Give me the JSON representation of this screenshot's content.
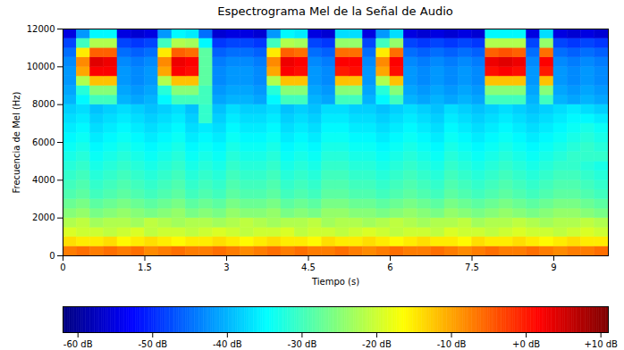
{
  "chart_data": {
    "type": "heatmap",
    "title": "Espectrograma Mel de la Señal de Audio",
    "x_label": "Tiempo (s)",
    "y_label": "Frecuencia de Mel (Hz)",
    "xlim": [
      0,
      10
    ],
    "xticks": [
      0,
      1.5,
      3,
      4.5,
      6,
      7.5,
      9
    ],
    "ylim": [
      0,
      12000
    ],
    "yticks": [
      0,
      2000,
      4000,
      6000,
      8000,
      10000,
      12000
    ],
    "color": "jet",
    "x_bins": [
      0,
      0.25,
      0.5,
      0.75,
      1,
      1.25,
      1.5,
      1.75,
      2,
      2.25,
      2.5,
      2.75,
      3,
      3.25,
      3.5,
      3.75,
      4,
      4.25,
      4.5,
      4.75,
      5,
      5.25,
      5.5,
      5.75,
      6,
      6.25,
      6.5,
      6.75,
      7,
      7.25,
      7.5,
      7.75,
      8,
      8.25,
      8.5,
      8.75,
      9,
      9.25,
      9.5,
      9.75,
      10
    ],
    "y_bins": [
      0,
      500,
      1000,
      1500,
      2000,
      2500,
      3000,
      3500,
      4000,
      4500,
      5000,
      5500,
      6000,
      6500,
      7000,
      7500,
      8000,
      8500,
      9000,
      9500,
      10000,
      10500,
      11000,
      11500,
      12000
    ],
    "values": [
      [
        -7,
        -6,
        -7,
        -6,
        -7,
        -6,
        -8,
        -7,
        -6,
        -7,
        -7,
        -6,
        -7,
        -8,
        -7,
        -6,
        -7,
        -6,
        -7,
        -7,
        -6,
        -7,
        -8,
        -7,
        -6,
        -7,
        -7,
        -6,
        -7,
        -8,
        -7,
        -6,
        -7,
        -7,
        -6,
        -7,
        -8,
        -7,
        -7,
        -6
      ],
      [
        -14,
        -15,
        -15,
        -14,
        -16,
        -15,
        -14,
        -15,
        -16,
        -15,
        -15,
        -14,
        -15,
        -16,
        -15,
        -14,
        -15,
        -15,
        -16,
        -14,
        -15,
        -15,
        -14,
        -15,
        -16,
        -15,
        -14,
        -15,
        -15,
        -16,
        -14,
        -15,
        -15,
        -14,
        -15,
        -16,
        -15,
        -14,
        -15,
        -15
      ],
      [
        -19,
        -20,
        -20,
        -21,
        -20,
        -19,
        -21,
        -20,
        -20,
        -21,
        -20,
        -19,
        -20,
        -21,
        -20,
        -20,
        -19,
        -21,
        -20,
        -20,
        -21,
        -20,
        -19,
        -20,
        -21,
        -20,
        -20,
        -21,
        -19,
        -20,
        -20,
        -21,
        -20,
        -19,
        -20,
        -20,
        -21,
        -20,
        -19,
        -20
      ],
      [
        -22,
        -21,
        -23,
        -22,
        -22,
        -23,
        -21,
        -22,
        -23,
        -22,
        -22,
        -23,
        -22,
        -21,
        -22,
        -23,
        -22,
        -22,
        -21,
        -23,
        -22,
        -22,
        -23,
        -22,
        -21,
        -22,
        -23,
        -22,
        -22,
        -21,
        -23,
        -22,
        -22,
        -21,
        -22,
        -23,
        -22,
        -22,
        -21,
        -22
      ],
      [
        -25,
        -24,
        -26,
        -25,
        -24,
        -25,
        -26,
        -25,
        -24,
        -26,
        -25,
        -26,
        -24,
        -25,
        -25,
        -24,
        -26,
        -25,
        -26,
        -24,
        -24,
        -25,
        -25,
        -26,
        -25,
        -24,
        -25,
        -26,
        -24,
        -25,
        -26,
        -25,
        -24,
        -25,
        -26,
        -25,
        -24,
        -24,
        -25,
        -26
      ],
      [
        -27,
        -26,
        -28,
        -27,
        -26,
        -27,
        -28,
        -27,
        -26,
        -28,
        -27,
        -28,
        -26,
        -27,
        -27,
        -26,
        -28,
        -27,
        -28,
        -26,
        -26,
        -27,
        -27,
        -28,
        -27,
        -26,
        -27,
        -28,
        -26,
        -27,
        -28,
        -27,
        -26,
        -27,
        -28,
        -27,
        -26,
        -26,
        -27,
        -28
      ],
      [
        -29,
        -28,
        -30,
        -29,
        -28,
        -29,
        -30,
        -29,
        -28,
        -30,
        -29,
        -30,
        -28,
        -29,
        -29,
        -28,
        -30,
        -29,
        -30,
        -28,
        -28,
        -29,
        -29,
        -30,
        -29,
        -28,
        -29,
        -30,
        -28,
        -29,
        -30,
        -29,
        -28,
        -29,
        -30,
        -29,
        -28,
        -28,
        -29,
        -30
      ],
      [
        -30,
        -29,
        -31,
        -30,
        -29,
        -30,
        -31,
        -30,
        -29,
        -31,
        -30,
        -31,
        -29,
        -30,
        -30,
        -29,
        -31,
        -30,
        -31,
        -29,
        -29,
        -30,
        -30,
        -31,
        -30,
        -29,
        -30,
        -31,
        -29,
        -30,
        -31,
        -30,
        -29,
        -30,
        -31,
        -30,
        -29,
        -29,
        -30,
        -31
      ],
      [
        -31,
        -30,
        -32,
        -31,
        -30,
        -31,
        -32,
        -31,
        -30,
        -32,
        -31,
        -32,
        -30,
        -31,
        -31,
        -30,
        -32,
        -31,
        -32,
        -30,
        -30,
        -31,
        -31,
        -32,
        -31,
        -30,
        -31,
        -32,
        -30,
        -31,
        -32,
        -31,
        -30,
        -31,
        -32,
        -31,
        -30,
        -30,
        -31,
        -32
      ],
      [
        -32,
        -31,
        -33,
        -32,
        -31,
        -32,
        -33,
        -32,
        -31,
        -33,
        -32,
        -33,
        -31,
        -32,
        -32,
        -31,
        -33,
        -32,
        -33,
        -31,
        -31,
        -32,
        -32,
        -33,
        -32,
        -31,
        -32,
        -33,
        -31,
        -32,
        -33,
        -32,
        -31,
        -32,
        -33,
        -32,
        -31,
        -31,
        -32,
        -33
      ],
      [
        -33,
        -32,
        -34,
        -33,
        -32,
        -33,
        -34,
        -33,
        -32,
        -34,
        -33,
        -34,
        -32,
        -33,
        -33,
        -32,
        -34,
        -33,
        -34,
        -32,
        -32,
        -33,
        -33,
        -34,
        -33,
        -32,
        -33,
        -34,
        -32,
        -33,
        -34,
        -33,
        -32,
        -33,
        -34,
        -33,
        -32,
        -31,
        -31,
        -31
      ],
      [
        -34,
        -33,
        -35,
        -34,
        -33,
        -34,
        -35,
        -34,
        -33,
        -35,
        -34,
        -35,
        -33,
        -34,
        -34,
        -33,
        -35,
        -34,
        -35,
        -33,
        -33,
        -34,
        -34,
        -35,
        -34,
        -33,
        -34,
        -35,
        -33,
        -34,
        -35,
        -34,
        -33,
        -34,
        -35,
        -34,
        -33,
        -32,
        -31,
        -32
      ],
      [
        -35,
        -34,
        -36,
        -35,
        -34,
        -35,
        -36,
        -35,
        -34,
        -36,
        -35,
        -36,
        -34,
        -35,
        -35,
        -34,
        -36,
        -35,
        -36,
        -34,
        -34,
        -35,
        -35,
        -36,
        -35,
        -34,
        -35,
        -36,
        -34,
        -35,
        -36,
        -35,
        -34,
        -35,
        -36,
        -35,
        -34,
        -33,
        -32,
        -33
      ],
      [
        -36,
        -35,
        -37,
        -36,
        -35,
        -36,
        -37,
        -36,
        -35,
        -37,
        -36,
        -37,
        -35,
        -36,
        -36,
        -35,
        -37,
        -36,
        -37,
        -35,
        -35,
        -36,
        -36,
        -37,
        -36,
        -35,
        -36,
        -37,
        -35,
        -36,
        -37,
        -36,
        -35,
        -36,
        -37,
        -36,
        -35,
        -34,
        -33,
        -34
      ],
      [
        -37,
        -36,
        -38,
        -37,
        -36,
        -37,
        -38,
        -37,
        -36,
        -38,
        -31,
        -38,
        -36,
        -37,
        -37,
        -36,
        -38,
        -37,
        -38,
        -36,
        -36,
        -37,
        -37,
        -38,
        -37,
        -36,
        -37,
        -38,
        -36,
        -37,
        -38,
        -37,
        -36,
        -37,
        -38,
        -37,
        -36,
        -35,
        -35,
        -36
      ],
      [
        -38,
        -37,
        -39,
        -38,
        -37,
        -38,
        -39,
        -38,
        -37,
        -39,
        -31,
        -39,
        -37,
        -38,
        -38,
        -37,
        -39,
        -38,
        -39,
        -37,
        -37,
        -38,
        -38,
        -39,
        -38,
        -37,
        -38,
        -39,
        -37,
        -38,
        -39,
        -38,
        -37,
        -38,
        -39,
        -38,
        -37,
        -36,
        -37,
        -38
      ],
      [
        -40,
        -35,
        -30,
        -30,
        -40,
        -41,
        -40,
        -35,
        -30,
        -30,
        -30,
        -41,
        -40,
        -40,
        -41,
        -35,
        -30,
        -30,
        -40,
        -41,
        -30,
        -30,
        -40,
        -35,
        -30,
        -40,
        -41,
        -40,
        -41,
        -40,
        -41,
        -30,
        -30,
        -30,
        -40,
        -30,
        -40,
        -41,
        -40,
        -41
      ],
      [
        -41,
        -32,
        -25,
        -25,
        -41,
        -42,
        -41,
        -32,
        -25,
        -25,
        -30,
        -42,
        -41,
        -41,
        -42,
        -32,
        -25,
        -25,
        -41,
        -42,
        -25,
        -25,
        -41,
        -32,
        -25,
        -41,
        -42,
        -41,
        -42,
        -41,
        -42,
        -25,
        -25,
        -25,
        -41,
        -25,
        -41,
        -42,
        -41,
        -42
      ],
      [
        -42,
        -22,
        -12,
        -12,
        -42,
        -43,
        -42,
        -22,
        -12,
        -12,
        -28,
        -43,
        -42,
        -42,
        -43,
        -22,
        -12,
        -12,
        -42,
        -43,
        -12,
        -12,
        -42,
        -22,
        -12,
        -42,
        -43,
        -42,
        -43,
        -42,
        -43,
        -12,
        -12,
        -12,
        -42,
        -12,
        -42,
        -43,
        -42,
        -43
      ],
      [
        -42,
        -10,
        2,
        2,
        -42,
        -43,
        -42,
        -10,
        2,
        1,
        -28,
        -43,
        -42,
        -42,
        -43,
        -10,
        2,
        1,
        -42,
        -43,
        0,
        1,
        -42,
        -10,
        1,
        -42,
        -43,
        -42,
        -43,
        -42,
        -43,
        1,
        2,
        1,
        -42,
        0,
        -42,
        -43,
        -42,
        -43
      ],
      [
        -43,
        -8,
        4,
        3,
        -43,
        -44,
        -43,
        -8,
        3,
        2,
        -28,
        -44,
        -43,
        -43,
        -44,
        -8,
        3,
        2,
        -43,
        -44,
        2,
        2,
        -43,
        -8,
        2,
        -43,
        -44,
        -43,
        -44,
        -43,
        -44,
        3,
        4,
        3,
        -43,
        2,
        -43,
        -44,
        -43,
        -44
      ],
      [
        -45,
        -15,
        -5,
        -5,
        -45,
        -46,
        -45,
        -15,
        -5,
        -6,
        -28,
        -46,
        -45,
        -45,
        -46,
        -15,
        -5,
        -6,
        -45,
        -46,
        -6,
        -6,
        -45,
        -15,
        -6,
        -45,
        -46,
        -45,
        -46,
        -45,
        -46,
        -5,
        -4,
        -5,
        -45,
        -6,
        -45,
        -46,
        -45,
        -46
      ],
      [
        -48,
        -30,
        -22,
        -22,
        -48,
        -49,
        -48,
        -30,
        -22,
        -23,
        -35,
        -49,
        -48,
        -48,
        -49,
        -30,
        -22,
        -23,
        -48,
        -49,
        -24,
        -24,
        -48,
        -30,
        -24,
        -48,
        -49,
        -48,
        -49,
        -48,
        -49,
        -22,
        -22,
        -22,
        -48,
        -24,
        -48,
        -49,
        -48,
        -49
      ],
      [
        -55,
        -42,
        -35,
        -35,
        -55,
        -56,
        -55,
        -42,
        -35,
        -36,
        -45,
        -56,
        -55,
        -55,
        -56,
        -42,
        -35,
        -36,
        -55,
        -56,
        -37,
        -37,
        -55,
        -42,
        -37,
        -55,
        -56,
        -55,
        -56,
        -55,
        -56,
        -35,
        -35,
        -35,
        -55,
        -37,
        -55,
        -56,
        -55,
        -56
      ]
    ],
    "colorbar_range": [
      -62,
      11
    ],
    "colorbar_ticks": [
      {
        "value": -60,
        "label": "-60 dB"
      },
      {
        "value": -50,
        "label": "-50 dB"
      },
      {
        "value": -40,
        "label": "-40 dB"
      },
      {
        "value": -30,
        "label": "-30 dB"
      },
      {
        "value": -20,
        "label": "-20 dB"
      },
      {
        "value": -10,
        "label": "-10 dB"
      },
      {
        "value": 0,
        "label": "+0 dB"
      },
      {
        "value": 10,
        "label": "+10 dB"
      }
    ]
  }
}
